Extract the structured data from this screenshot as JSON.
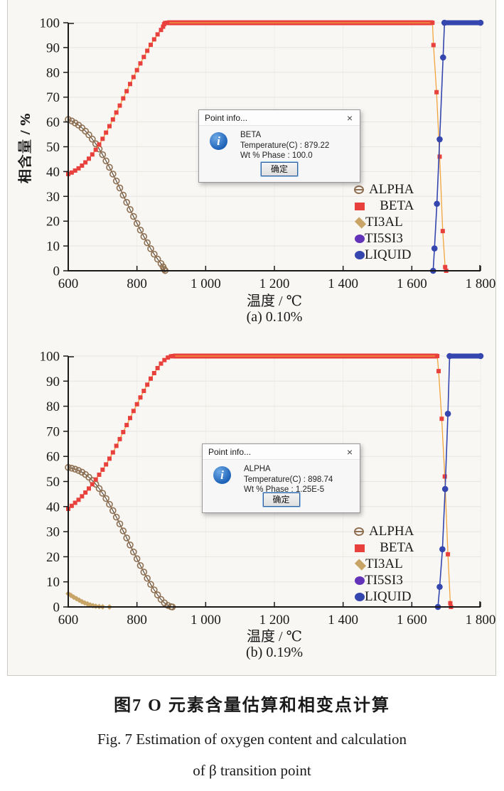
{
  "figure": {
    "caption_zh": "图7  O 元素含量估算和相变点计算",
    "caption_en_line1": "Fig. 7   Estimation of oxygen content and calculation",
    "caption_en_line2": "of β transition point"
  },
  "charts": [
    {
      "caption": "(a) 0.10%",
      "xlabel": "温度 / ℃",
      "ylabel": "相含量 / %"
    },
    {
      "caption": "(b) 0.19%",
      "xlabel": "温度 / ℃",
      "ylabel": "相含量 / %"
    }
  ],
  "dialogs": [
    {
      "title": "Point info...",
      "close_glyph": "×",
      "info_glyph": "i",
      "phase": "BETA",
      "temperature_line": "Temperature(C) : 879.22",
      "wt_line": "Wt % Phase : 100.0",
      "ok_label": "确定"
    },
    {
      "title": "Point info...",
      "close_glyph": "×",
      "info_glyph": "i",
      "phase": "ALPHA",
      "temperature_line": "Temperature(C) : 898.74",
      "wt_line": "Wt % Phase : 1.25E-5",
      "ok_label": "确定"
    }
  ],
  "legend": {
    "items": [
      {
        "label": "ALPHA",
        "marker": "open-circle",
        "color": "#8F7052"
      },
      {
        "label": "BETA",
        "marker": "square",
        "color": "#E8403C"
      },
      {
        "label": "TI3AL",
        "marker": "diamond",
        "color": "#C8A566"
      },
      {
        "label": "TI5SI3",
        "marker": "circle",
        "color": "#6233B8"
      },
      {
        "label": "LIQUID",
        "marker": "circle",
        "color": "#3546AE"
      }
    ]
  },
  "colors": {
    "axis": "#1A1A1A",
    "text": "#1A1A1A",
    "grid_h": "#E7E6E1",
    "grid_v": "#EFEEE9",
    "figure_bg": "#F8F7F4",
    "figure_border": "#CBCAC6",
    "beta_red": "#E8403C",
    "beta_line_orange": "#F2A43C",
    "ti3al_tan": "#C8A566",
    "alpha_brown": "#8F7052",
    "ti5si3_purple": "#6233B8",
    "liquid_blue": "#3546AE"
  },
  "chart_data": [
    {
      "type": "line",
      "title": "(a) 0.10%",
      "xlabel": "温度 / ℃",
      "ylabel": "相含量 / %",
      "xlim": [
        600,
        1800
      ],
      "ylim": [
        0,
        100
      ],
      "x_ticks": [
        600,
        800,
        1000,
        1200,
        1400,
        1600,
        1800
      ],
      "x_tick_labels": [
        "600",
        "800",
        "1 000",
        "1 200",
        "1 400",
        "1 600",
        "1 800"
      ],
      "y_ticks": [
        0,
        10,
        20,
        30,
        40,
        50,
        60,
        70,
        80,
        90,
        100
      ],
      "y_tick_labels": [
        "0",
        "10",
        "20",
        "30",
        "40",
        "50",
        "60",
        "70",
        "80",
        "90",
        "100"
      ],
      "grid": true,
      "legend_position": "right-middle",
      "series": [
        {
          "name": "ALPHA",
          "marker": "open-circle",
          "color": "#8F7052",
          "line_color": "#55402E",
          "line_width": 1.1,
          "points": [
            [
              600,
              61
            ],
            [
              610,
              60.4
            ],
            [
              620,
              59.6
            ],
            [
              630,
              58.7
            ],
            [
              640,
              57.6
            ],
            [
              650,
              56.3
            ],
            [
              660,
              54.8
            ],
            [
              670,
              53.1
            ],
            [
              680,
              51.2
            ],
            [
              690,
              49.1
            ],
            [
              700,
              46.8
            ],
            [
              710,
              44.3
            ],
            [
              720,
              41.7
            ],
            [
              730,
              39
            ],
            [
              740,
              36.2
            ],
            [
              750,
              33.4
            ],
            [
              760,
              30.5
            ],
            [
              770,
              27.6
            ],
            [
              780,
              24.7
            ],
            [
              790,
              21.9
            ],
            [
              800,
              19.1
            ],
            [
              810,
              16.4
            ],
            [
              820,
              13.8
            ],
            [
              830,
              11.3
            ],
            [
              840,
              8.9
            ],
            [
              850,
              6.7
            ],
            [
              860,
              4.7
            ],
            [
              870,
              2.9
            ],
            [
              876,
              1.6
            ],
            [
              879,
              0.6
            ],
            [
              882,
              0.1
            ]
          ],
          "bands": []
        },
        {
          "name": "TI3AL",
          "marker": "diamond",
          "color": "#C8A566",
          "line_color": "#DCBE85",
          "line_width": 2.2,
          "points": [],
          "bands": []
        },
        {
          "name": "TI5SI3",
          "marker": "circle",
          "color": "#6233B8",
          "line_color": "#6233B8",
          "line_width": 1.4,
          "points": [],
          "bands": []
        },
        {
          "name": "BETA",
          "marker": "square",
          "color": "#E8403C",
          "line_color": "#F2A43C",
          "line_width": 1.3,
          "points": [
            [
              600,
              39
            ],
            [
              610,
              39.6
            ],
            [
              620,
              40.4
            ],
            [
              630,
              41.3
            ],
            [
              640,
              42.4
            ],
            [
              650,
              43.7
            ],
            [
              660,
              45.2
            ],
            [
              670,
              46.9
            ],
            [
              680,
              48.8
            ],
            [
              690,
              50.9
            ],
            [
              700,
              53.2
            ],
            [
              710,
              55.7
            ],
            [
              720,
              58.3
            ],
            [
              730,
              61
            ],
            [
              740,
              63.8
            ],
            [
              750,
              66.6
            ],
            [
              760,
              69.5
            ],
            [
              770,
              72.4
            ],
            [
              780,
              75.3
            ],
            [
              790,
              78.1
            ],
            [
              800,
              80.9
            ],
            [
              810,
              83.6
            ],
            [
              820,
              86.2
            ],
            [
              830,
              88.7
            ],
            [
              840,
              91.1
            ],
            [
              850,
              93.3
            ],
            [
              860,
              95.3
            ],
            [
              870,
              97.1
            ],
            [
              876,
              98.4
            ],
            [
              879,
              99.4
            ],
            [
              882,
              99.9
            ],
            [
              888,
              100
            ],
            [
              1660,
              100
            ],
            [
              1663,
              91
            ],
            [
              1672,
              72
            ],
            [
              1681,
              46
            ],
            [
              1690,
              16
            ],
            [
              1697,
              1.5
            ],
            [
              1700,
              0
            ]
          ],
          "bands": [
            [
              888,
              1662,
              100
            ]
          ]
        },
        {
          "name": "LIQUID",
          "marker": "circle",
          "color": "#3546AE",
          "line_color": "#3546AE",
          "line_width": 1.6,
          "points": [
            [
              1662,
              0
            ],
            [
              1666,
              9
            ],
            [
              1673,
              27
            ],
            [
              1681,
              53
            ],
            [
              1691,
              86
            ],
            [
              1695,
              100
            ],
            [
              1800,
              100
            ]
          ],
          "bands": [
            [
              1695,
              1800,
              100
            ]
          ]
        }
      ]
    },
    {
      "type": "line",
      "title": "(b) 0.19%",
      "xlabel": "温度 / ℃",
      "ylabel": "相含量 / %",
      "xlim": [
        600,
        1800
      ],
      "ylim": [
        0,
        100
      ],
      "x_ticks": [
        600,
        800,
        1000,
        1200,
        1400,
        1600,
        1800
      ],
      "x_tick_labels": [
        "600",
        "800",
        "1 000",
        "1 200",
        "1 400",
        "1 600",
        "1 800"
      ],
      "y_ticks": [
        0,
        10,
        20,
        30,
        40,
        50,
        60,
        70,
        80,
        90,
        100
      ],
      "y_tick_labels": [
        "0",
        "10",
        "20",
        "30",
        "40",
        "50",
        "60",
        "70",
        "80",
        "90",
        "100"
      ],
      "grid": true,
      "legend_position": "right-middle",
      "series": [
        {
          "name": "ALPHA",
          "marker": "open-circle",
          "color": "#8F7052",
          "line_color": "#55402E",
          "line_width": 1.1,
          "points": [
            [
              600,
              55.6
            ],
            [
              610,
              55.3
            ],
            [
              620,
              54.9
            ],
            [
              630,
              54.4
            ],
            [
              640,
              53.7
            ],
            [
              650,
              52.8
            ],
            [
              660,
              51.7
            ],
            [
              670,
              50.4
            ],
            [
              680,
              48.9
            ],
            [
              690,
              47.2
            ],
            [
              700,
              45.3
            ],
            [
              710,
              43.2
            ],
            [
              720,
              40.9
            ],
            [
              730,
              38.4
            ],
            [
              740,
              35.8
            ],
            [
              750,
              33.1
            ],
            [
              760,
              30.3
            ],
            [
              770,
              27.5
            ],
            [
              780,
              24.7
            ],
            [
              790,
              21.9
            ],
            [
              800,
              19.2
            ],
            [
              810,
              16.5
            ],
            [
              820,
              13.9
            ],
            [
              830,
              11.4
            ],
            [
              840,
              9
            ],
            [
              850,
              6.8
            ],
            [
              860,
              4.8
            ],
            [
              870,
              3
            ],
            [
              880,
              1.6
            ],
            [
              890,
              0.6
            ],
            [
              899,
              0.1
            ],
            [
              903,
              0
            ]
          ],
          "bands": []
        },
        {
          "name": "TI3AL",
          "marker": "diamond",
          "color": "#C8A566",
          "line_color": "#DCBE85",
          "line_width": 2.2,
          "points": [
            [
              600,
              5.3
            ],
            [
              608,
              4.6
            ],
            [
              616,
              3.9
            ],
            [
              624,
              3.3
            ],
            [
              632,
              2.7
            ],
            [
              640,
              2.1
            ],
            [
              648,
              1.6
            ],
            [
              656,
              1.2
            ],
            [
              664,
              0.8
            ],
            [
              672,
              0.5
            ],
            [
              680,
              0.3
            ],
            [
              690,
              0.15
            ],
            [
              700,
              0.05
            ],
            [
              720,
              0
            ]
          ],
          "bands": []
        },
        {
          "name": "TI5SI3",
          "marker": "circle",
          "color": "#6233B8",
          "line_color": "#6233B8",
          "line_width": 1.4,
          "points": [],
          "bands": []
        },
        {
          "name": "BETA",
          "marker": "square",
          "color": "#E8403C",
          "line_color": "#F2A43C",
          "line_width": 1.3,
          "points": [
            [
              600,
              39.1
            ],
            [
              610,
              40.3
            ],
            [
              620,
              41.5
            ],
            [
              630,
              42.7
            ],
            [
              640,
              44.1
            ],
            [
              650,
              45.6
            ],
            [
              660,
              47.2
            ],
            [
              670,
              48.9
            ],
            [
              680,
              50.8
            ],
            [
              690,
              52.7
            ],
            [
              700,
              54.7
            ],
            [
              710,
              56.8
            ],
            [
              720,
              59.1
            ],
            [
              730,
              61.6
            ],
            [
              740,
              64.2
            ],
            [
              750,
              66.9
            ],
            [
              760,
              69.7
            ],
            [
              770,
              72.5
            ],
            [
              780,
              75.3
            ],
            [
              790,
              78.1
            ],
            [
              800,
              80.8
            ],
            [
              810,
              83.5
            ],
            [
              820,
              86.1
            ],
            [
              830,
              88.6
            ],
            [
              840,
              91
            ],
            [
              850,
              93.2
            ],
            [
              860,
              95.2
            ],
            [
              870,
              97
            ],
            [
              880,
              98.4
            ],
            [
              890,
              99.4
            ],
            [
              899,
              99.9
            ],
            [
              905,
              100
            ],
            [
              1674,
              100
            ],
            [
              1678,
              94
            ],
            [
              1687,
              75
            ],
            [
              1696,
              52
            ],
            [
              1705,
              21
            ],
            [
              1712,
              1.5
            ],
            [
              1714,
              0
            ]
          ],
          "bands": [
            [
              905,
              1676,
              100
            ]
          ]
        },
        {
          "name": "LIQUID",
          "marker": "circle",
          "color": "#3546AE",
          "line_color": "#3546AE",
          "line_width": 1.6,
          "points": [
            [
              1676,
              0
            ],
            [
              1681,
              8
            ],
            [
              1689,
              23
            ],
            [
              1697,
              47
            ],
            [
              1705,
              77
            ],
            [
              1710,
              100
            ],
            [
              1800,
              100
            ]
          ],
          "bands": [
            [
              1710,
              1800,
              100
            ]
          ]
        }
      ]
    }
  ]
}
